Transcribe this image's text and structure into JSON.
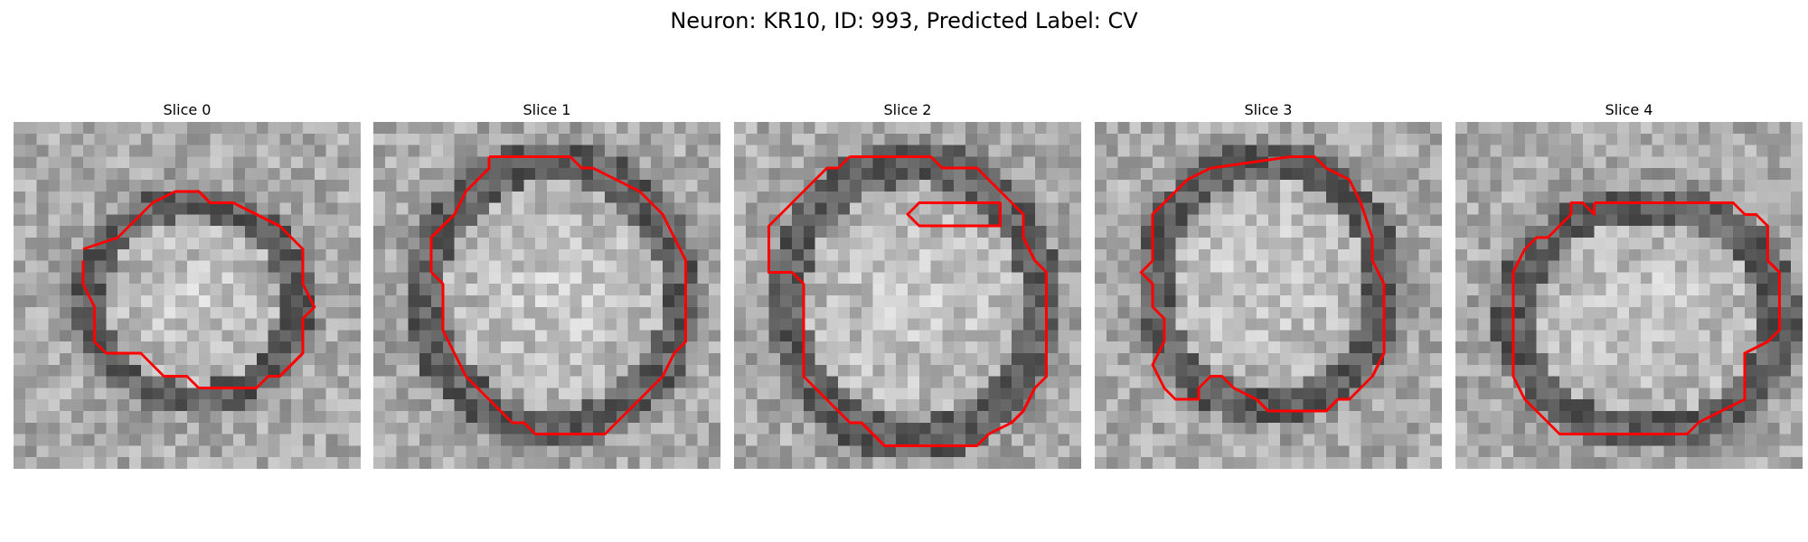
{
  "figure": {
    "title": "Neuron: KR10, ID: 993, Predicted Label: CV",
    "panels": [
      {
        "title": "Slice 0"
      },
      {
        "title": "Slice 1"
      },
      {
        "title": "Slice 2"
      },
      {
        "title": "Slice 3"
      },
      {
        "title": "Slice 4"
      }
    ]
  },
  "colors": {
    "contour": "#ff0000",
    "background": "#ffffff"
  }
}
